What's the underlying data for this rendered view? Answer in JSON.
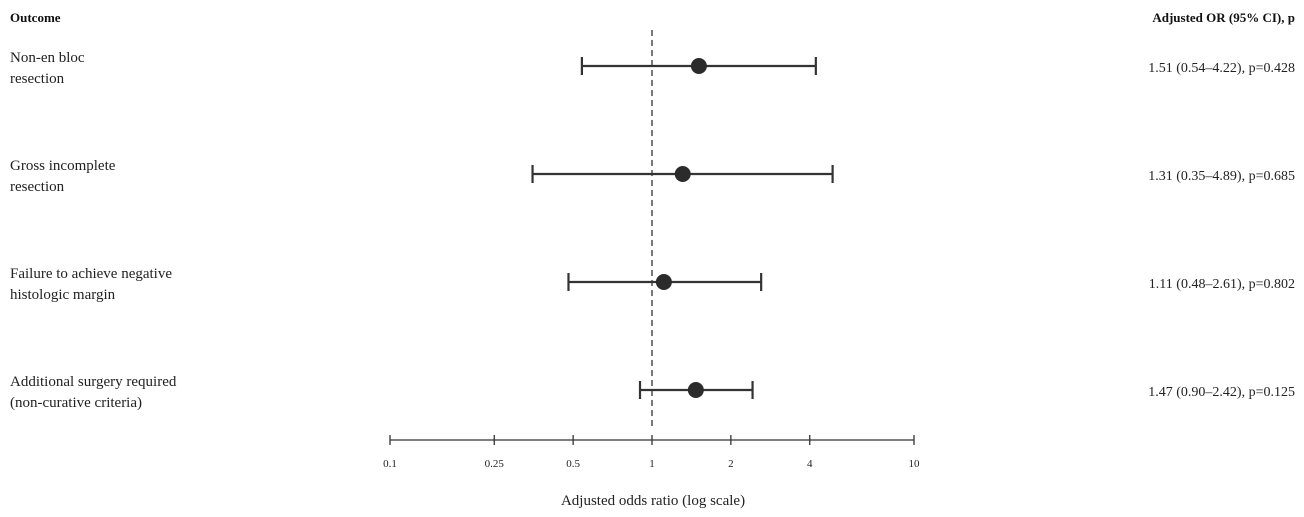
{
  "header": {
    "outcome_label": "Outcome",
    "result_label": "Adjusted OR (95% CI), p"
  },
  "chart_data": {
    "type": "forest",
    "xlabel": "Adjusted odds ratio (log scale)",
    "x_scale": "log",
    "xlim": [
      0.1,
      10
    ],
    "x_ticks": [
      0.1,
      0.25,
      0.5,
      1,
      2,
      4,
      10
    ],
    "x_tick_labels": [
      "0.1",
      "0.25",
      "0.5",
      "1",
      "2",
      "4",
      "10"
    ],
    "reference_line": 1,
    "rows": [
      {
        "label_lines": [
          "Non-en bloc",
          "resection"
        ],
        "or": 1.51,
        "lower": 0.54,
        "upper": 4.22,
        "p": 0.428,
        "result_text": "1.51 (0.54–4.22), p=0.428"
      },
      {
        "label_lines": [
          "Gross incomplete",
          "resection"
        ],
        "or": 1.31,
        "lower": 0.35,
        "upper": 4.89,
        "p": 0.685,
        "result_text": "1.31 (0.35–4.89), p=0.685"
      },
      {
        "label_lines": [
          "Failure to achieve negative",
          "histologic margin"
        ],
        "or": 1.11,
        "lower": 0.48,
        "upper": 2.61,
        "p": 0.802,
        "result_text": "1.11 (0.48–2.61), p=0.802"
      },
      {
        "label_lines": [
          "Additional surgery required",
          "(non-curative criteria)"
        ],
        "or": 1.47,
        "lower": 0.9,
        "upper": 2.42,
        "p": 0.125,
        "result_text": "1.47 (0.90–2.42), p=0.125"
      }
    ]
  }
}
